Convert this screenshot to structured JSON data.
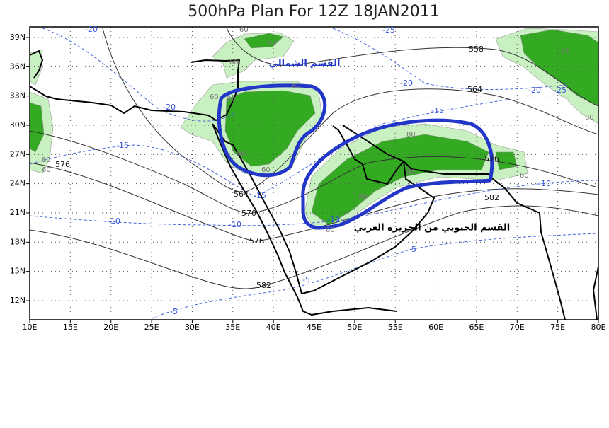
{
  "title": "500hPa Plan For 12Z 18JAN2011",
  "lon_labels": [
    "10E",
    "15E",
    "20E",
    "25E",
    "30E",
    "35E",
    "40E",
    "45E",
    "50E",
    "55E",
    "60E",
    "65E",
    "70E",
    "75E",
    "80E"
  ],
  "lat_labels": [
    "39N",
    "36N",
    "33N",
    "30N",
    "27N",
    "24N",
    "21N",
    "18N",
    "15N",
    "12N"
  ],
  "annotations": {
    "north": "القسم الشمالي",
    "south": "القسم الجنوبي من الجزيرة العربي"
  },
  "height_labels": [
    "558",
    "564",
    "576",
    "564",
    "570",
    "576",
    "582",
    "582",
    "576"
  ],
  "wind_labels": [
    "-20",
    "-25",
    "-20",
    "-15",
    "-15",
    "-20",
    "-25",
    "-20",
    "-15",
    "-10",
    "-10",
    "-10",
    "-10",
    "-5",
    "-5",
    "-5"
  ],
  "humidity_labels": [
    "60",
    "80",
    "60",
    "60",
    "80",
    "80",
    "80",
    "60",
    "80",
    "60",
    "80",
    "60",
    "80",
    "60",
    "60",
    "60",
    "80"
  ]
}
